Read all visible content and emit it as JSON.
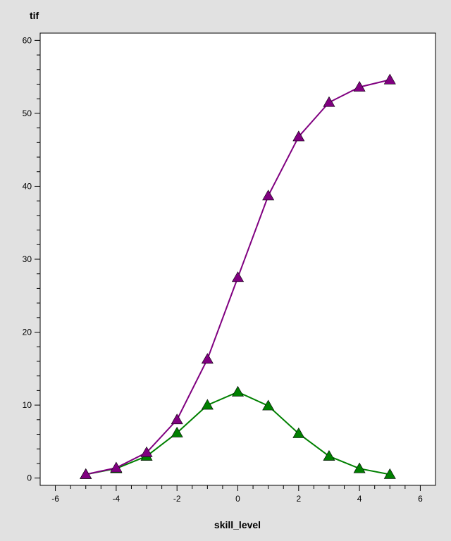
{
  "chart_data": {
    "type": "line",
    "title": "",
    "xlabel": "skill_level",
    "ylabel": "tif",
    "xlim": [
      -6.5,
      6.5
    ],
    "ylim": [
      -1,
      61
    ],
    "xticks": [
      -6,
      -4,
      -2,
      0,
      2,
      4,
      6
    ],
    "yticks": [
      0,
      10,
      20,
      30,
      40,
      50,
      60
    ],
    "grid": false,
    "legend": "none",
    "x": [
      -5,
      -4,
      -3,
      -2,
      -1,
      0,
      1,
      2,
      3,
      4,
      5
    ],
    "series": [
      {
        "color": "#800080",
        "marker": "triangle",
        "values": [
          0.5,
          1.4,
          3.5,
          8.0,
          16.3,
          27.5,
          38.7,
          46.8,
          51.5,
          53.6,
          54.6
        ]
      },
      {
        "color": "#008000",
        "marker": "triangle",
        "values": [
          0.5,
          1.3,
          3.0,
          6.2,
          10.0,
          11.8,
          9.9,
          6.1,
          3.0,
          1.3,
          0.5
        ]
      }
    ]
  }
}
